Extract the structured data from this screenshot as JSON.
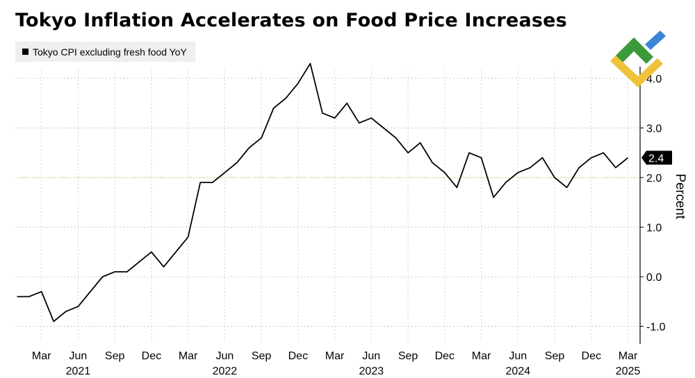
{
  "title": "Tokyo Inflation Accelerates on Food Price Increases",
  "logo": {
    "icon": "liteforex-logo-icon",
    "colors": [
      "#3a9a3a",
      "#3a86d6",
      "#f0c23c"
    ]
  },
  "chart_data": {
    "type": "line",
    "title": "Tokyo Inflation Accelerates on Food Price Increases",
    "ylabel": "Percent",
    "ylim": [
      -1.4,
      4.7
    ],
    "yticks": [
      -1.0,
      0.0,
      1.0,
      2.0,
      3.0,
      4.0
    ],
    "ytick_labels": [
      "-1.0",
      "0.0",
      "1.0",
      "2.0",
      "3.0",
      "4.0"
    ],
    "x_month_labels": [
      "Mar",
      "Jun",
      "Sep",
      "Dec",
      "Mar",
      "Jun",
      "Sep",
      "Dec",
      "Mar",
      "Jun",
      "Sep",
      "Dec",
      "Mar",
      "Jun",
      "Sep",
      "Dec",
      "Mar"
    ],
    "x_year_labels": [
      "2021",
      "2022",
      "2023",
      "2024",
      "2025"
    ],
    "x_start": "2021-01",
    "legend": "top-left",
    "reference_line": 2.0,
    "last_value_label": "2.4",
    "series": [
      {
        "name": "Tokyo CPI excluding fresh food YoY",
        "color": "#000000",
        "x": [
          "2021-01",
          "2021-02",
          "2021-03",
          "2021-04",
          "2021-05",
          "2021-06",
          "2021-07",
          "2021-08",
          "2021-09",
          "2021-10",
          "2021-11",
          "2021-12",
          "2022-01",
          "2022-02",
          "2022-03",
          "2022-04",
          "2022-05",
          "2022-06",
          "2022-07",
          "2022-08",
          "2022-09",
          "2022-10",
          "2022-11",
          "2022-12",
          "2023-01",
          "2023-02",
          "2023-03",
          "2023-04",
          "2023-05",
          "2023-06",
          "2023-07",
          "2023-08",
          "2023-09",
          "2023-10",
          "2023-11",
          "2023-12",
          "2024-01",
          "2024-02",
          "2024-03",
          "2024-04",
          "2024-05",
          "2024-06",
          "2024-07",
          "2024-08",
          "2024-09",
          "2024-10",
          "2024-11",
          "2024-12",
          "2025-01",
          "2025-02",
          "2025-03"
        ],
        "values": [
          -0.4,
          -0.4,
          -0.3,
          -0.9,
          -0.7,
          -0.6,
          -0.3,
          0.0,
          0.1,
          0.1,
          0.3,
          0.5,
          0.2,
          0.5,
          0.8,
          1.9,
          1.9,
          2.1,
          2.3,
          2.6,
          2.8,
          3.4,
          3.6,
          3.9,
          4.3,
          3.3,
          3.2,
          3.5,
          3.1,
          3.2,
          3.0,
          2.8,
          2.5,
          2.7,
          2.3,
          2.1,
          1.8,
          2.5,
          2.4,
          1.6,
          1.9,
          2.1,
          2.2,
          2.4,
          2.0,
          1.8,
          2.2,
          2.4,
          2.5,
          2.2,
          2.4
        ]
      }
    ]
  }
}
